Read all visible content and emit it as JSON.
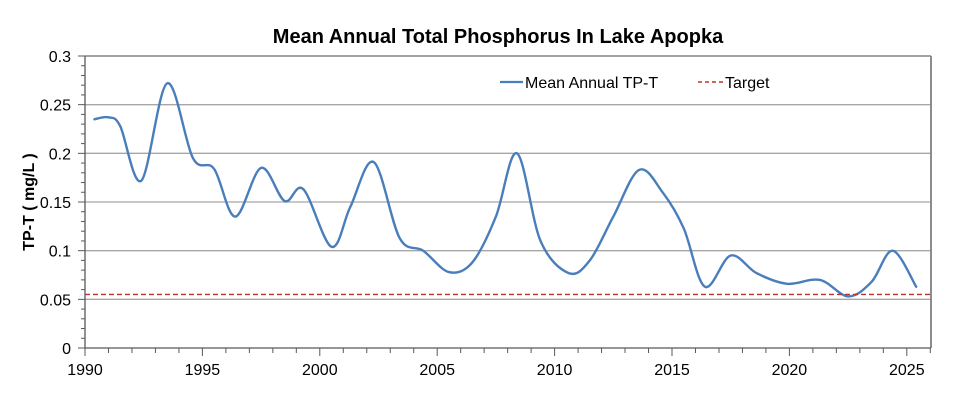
{
  "chart_data": {
    "type": "line",
    "title": "Mean Annual Total Phosphorus In Lake Apopka",
    "xlabel": "",
    "ylabel": "TP-T ( mg/L )",
    "xlim": [
      1990,
      2026
    ],
    "ylim": [
      0,
      0.3
    ],
    "x_ticks": [
      1990,
      1995,
      2000,
      2005,
      2010,
      2015,
      2020,
      2025
    ],
    "x_tick_labels": [
      "1990",
      "1995",
      "2000",
      "2005",
      "2010",
      "2015",
      "2020",
      "2025"
    ],
    "y_ticks": [
      0,
      0.05,
      0.1,
      0.15,
      0.2,
      0.25,
      0.3
    ],
    "y_tick_labels": [
      "0",
      "0.05",
      "0.1",
      "0.15",
      "0.2",
      "0.25",
      "0.3"
    ],
    "grid": true,
    "legend_position": "top-right",
    "series": [
      {
        "name": "Mean Annual TP-T",
        "color": "#4a7ebb",
        "style": "smooth",
        "x": [
          1990.4,
          1991.0,
          1991.5,
          1992.4,
          1993.5,
          1994.6,
          1995.5,
          1996.4,
          1997.5,
          1998.5,
          1999.3,
          2000.5,
          2001.3,
          2002.3,
          2003.4,
          2004.4,
          2005.5,
          2006.5,
          2007.5,
          2008.4,
          2009.4,
          2010.6,
          2011.5,
          2012.5,
          2013.6,
          2014.6,
          2015.5,
          2016.4,
          2017.5,
          2018.6,
          2019.9,
          2021.3,
          2022.5,
          2023.5,
          2024.4,
          2025.4
        ],
        "values": [
          0.235,
          0.237,
          0.228,
          0.172,
          0.272,
          0.195,
          0.184,
          0.135,
          0.185,
          0.151,
          0.163,
          0.104,
          0.145,
          0.191,
          0.113,
          0.1,
          0.078,
          0.088,
          0.135,
          0.2,
          0.11,
          0.077,
          0.09,
          0.135,
          0.183,
          0.16,
          0.123,
          0.063,
          0.095,
          0.077,
          0.066,
          0.07,
          0.053,
          0.068,
          0.1,
          0.063
        ]
      },
      {
        "name": "Target",
        "color": "#c0302a",
        "style": "dashed",
        "x": [
          1990,
          2026
        ],
        "values": [
          0.055,
          0.055
        ]
      }
    ]
  }
}
